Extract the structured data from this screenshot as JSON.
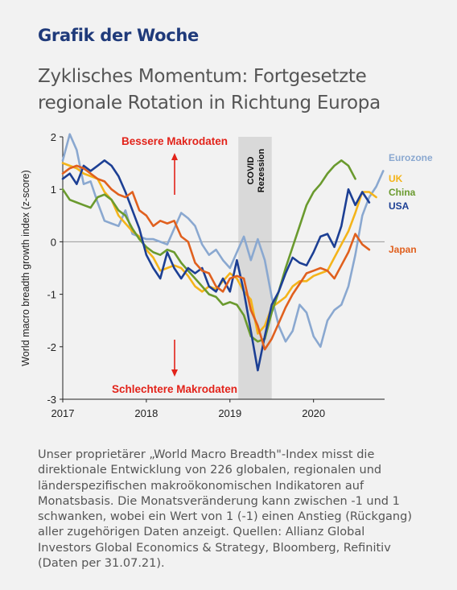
{
  "header": {
    "kicker": "Grafik der Woche",
    "title_lines": [
      "Zyklisches Momentum: Fortgesetzte",
      "regionale Rotation in Richtung Europa"
    ]
  },
  "caption_lines": [
    "Unser proprietärer „World Macro Breadth\"-Index misst die",
    "direktionale Entwicklung von 226 globalen, regionalen und",
    "länderspezifischen makroökonomischen Indikatoren auf",
    "Monatsbasis. Die Monatsveränderung kann zwischen -1 und 1",
    "schwanken, wobei ein Wert von 1 (-1) einen Anstieg (Rückgang)",
    "aller zugehörigen Daten anzeigt. Quellen: Allianz Global",
    "Investors Global Economics & Strategy, Bloomberg, Refinitiv",
    "(Daten per 31.07.21)."
  ],
  "chart_data": {
    "type": "line",
    "ylabel": "World macro breadth growth index (z-score)",
    "xlabel": "",
    "ylim": [
      -3,
      2
    ],
    "yticks": [
      "2",
      "1",
      "0",
      "-1",
      "-2",
      "-3"
    ],
    "xticks": [
      {
        "label": "2017",
        "value": 2017.0
      },
      {
        "label": "2018",
        "value": 2018.0
      },
      {
        "label": "2019",
        "value": 2019.0
      },
      {
        "label": "2020",
        "value": 2020.0
      }
    ],
    "xlim": [
      2017.0,
      2020.85
    ],
    "zero_line": true,
    "shaded_region": {
      "from": 2019.1,
      "to": 2019.5,
      "color": "#d9d9d9",
      "label_lines": [
        "COVID",
        "Rezession"
      ]
    },
    "annotations": [
      {
        "text": "Bessere Makrodaten",
        "color": "#e2231a",
        "arrow": "up"
      },
      {
        "text": "Schlechtere Makrodaten",
        "color": "#e2231a",
        "arrow": "down"
      }
    ],
    "series": [
      {
        "name": "Eurozone",
        "color": "#8aa8d0",
        "x_start": 2017.0,
        "x_step": 0.08333,
        "values": [
          1.55,
          2.05,
          1.75,
          1.1,
          1.15,
          0.75,
          0.4,
          0.35,
          0.3,
          0.6,
          0.15,
          0.1,
          0.05,
          0.05,
          0.0,
          -0.05,
          0.25,
          0.55,
          0.45,
          0.3,
          -0.05,
          -0.25,
          -0.15,
          -0.35,
          -0.5,
          -0.2,
          0.1,
          -0.35,
          0.05,
          -0.35,
          -1.05,
          -1.6,
          -1.9,
          -1.7,
          -1.2,
          -1.35,
          -1.8,
          -2.0,
          -1.5,
          -1.3,
          -1.2,
          -0.85,
          -0.25,
          0.5,
          0.85,
          1.05,
          1.35
        ]
      },
      {
        "name": "UK",
        "color": "#f4b41a",
        "x_start": 2017.0,
        "x_step": 0.08333,
        "values": [
          1.5,
          1.45,
          1.4,
          1.3,
          1.25,
          1.2,
          0.95,
          0.8,
          0.5,
          0.35,
          0.2,
          0.1,
          -0.15,
          -0.3,
          -0.55,
          -0.5,
          -0.45,
          -0.5,
          -0.65,
          -0.85,
          -0.95,
          -0.85,
          -0.9,
          -0.75,
          -0.6,
          -0.7,
          -0.95,
          -1.1,
          -1.75,
          -1.6,
          -1.25,
          -1.15,
          -1.05,
          -0.85,
          -0.75,
          -0.75,
          -0.65,
          -0.6,
          -0.55,
          -0.3,
          -0.05,
          0.2,
          0.55,
          0.95,
          0.95,
          0.85
        ]
      },
      {
        "name": "China",
        "color": "#6a9a2e",
        "x_start": 2017.0,
        "x_step": 0.08333,
        "values": [
          1.0,
          0.8,
          0.75,
          0.7,
          0.65,
          0.85,
          0.9,
          0.8,
          0.6,
          0.5,
          0.25,
          0.05,
          -0.1,
          -0.2,
          -0.25,
          -0.15,
          -0.2,
          -0.4,
          -0.55,
          -0.7,
          -0.85,
          -1.0,
          -1.05,
          -1.2,
          -1.15,
          -1.2,
          -1.4,
          -1.8,
          -1.9,
          -1.85,
          -1.35,
          -0.95,
          -0.5,
          -0.1,
          0.3,
          0.7,
          0.95,
          1.1,
          1.3,
          1.45,
          1.55,
          1.45,
          1.2
        ]
      },
      {
        "name": "USA",
        "color": "#1c3f94",
        "x_start": 2017.0,
        "x_step": 0.08333,
        "values": [
          1.2,
          1.3,
          1.1,
          1.45,
          1.35,
          1.45,
          1.55,
          1.45,
          1.25,
          0.95,
          0.6,
          0.25,
          -0.25,
          -0.5,
          -0.7,
          -0.2,
          -0.5,
          -0.7,
          -0.5,
          -0.6,
          -0.5,
          -0.85,
          -0.95,
          -0.7,
          -0.95,
          -0.35,
          -0.95,
          -1.7,
          -2.45,
          -1.8,
          -1.2,
          -0.95,
          -0.6,
          -0.3,
          -0.4,
          -0.45,
          -0.2,
          0.1,
          0.15,
          -0.1,
          0.3,
          1.0,
          0.7,
          0.95,
          0.75
        ]
      },
      {
        "name": "Japan",
        "color": "#e0601e",
        "x_start": 2017.0,
        "x_step": 0.08333,
        "values": [
          1.3,
          1.4,
          1.45,
          1.4,
          1.3,
          1.2,
          1.15,
          1.0,
          0.9,
          0.85,
          0.95,
          0.6,
          0.5,
          0.3,
          0.4,
          0.35,
          0.4,
          0.1,
          0.0,
          -0.4,
          -0.55,
          -0.6,
          -0.85,
          -0.95,
          -0.7,
          -0.65,
          -0.7,
          -1.3,
          -1.6,
          -2.05,
          -1.85,
          -1.55,
          -1.25,
          -1.0,
          -0.8,
          -0.6,
          -0.55,
          -0.5,
          -0.55,
          -0.7,
          -0.45,
          -0.2,
          0.15,
          -0.05,
          -0.15
        ]
      }
    ]
  }
}
